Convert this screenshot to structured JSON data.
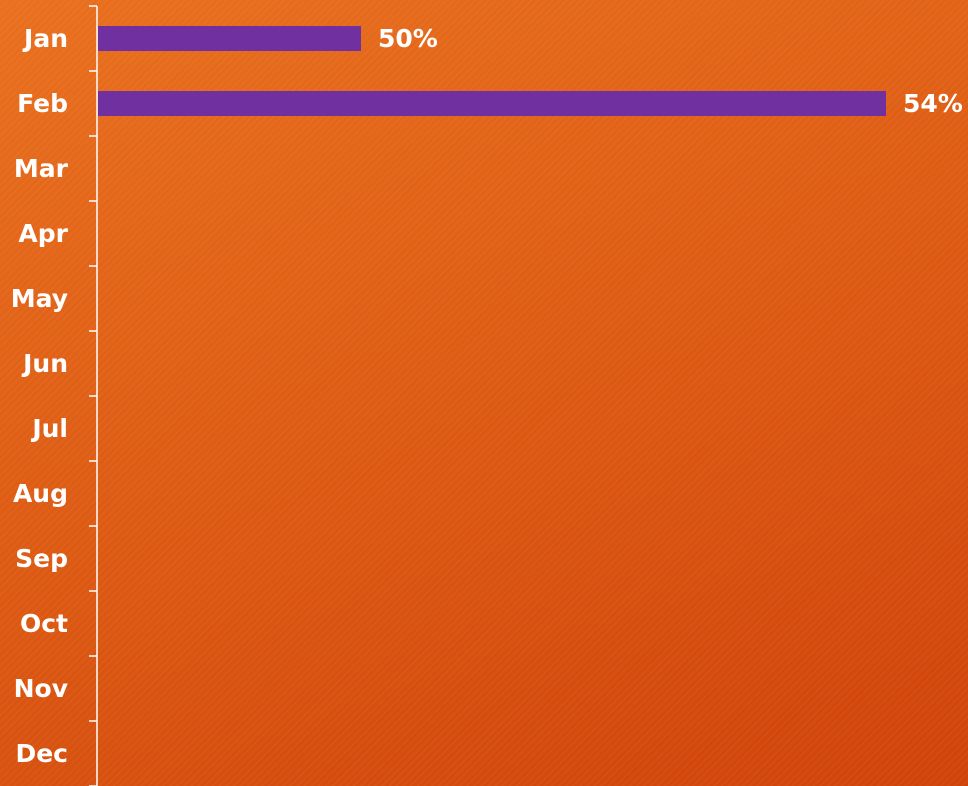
{
  "chart_data": {
    "type": "bar",
    "orientation": "horizontal",
    "categories": [
      "Jan",
      "Feb",
      "Mar",
      "Apr",
      "May",
      "Jun",
      "Jul",
      "Aug",
      "Sep",
      "Oct",
      "Nov",
      "Dec"
    ],
    "series": [
      {
        "values": [
          50,
          54,
          null,
          null,
          null,
          null,
          null,
          null,
          null,
          null,
          null,
          null
        ]
      }
    ],
    "data_labels": [
      "50%",
      "54%",
      "",
      "",
      "",
      "",
      "",
      "",
      "",
      "",
      "",
      ""
    ],
    "value_axis_min": 0,
    "title": "",
    "xlabel": "",
    "ylabel": "",
    "grid": false,
    "legend": "none"
  },
  "colors": {
    "background": "#dd5a13",
    "bar": "#7030a0",
    "axis": "#ffffff",
    "text": "#ffffff"
  }
}
